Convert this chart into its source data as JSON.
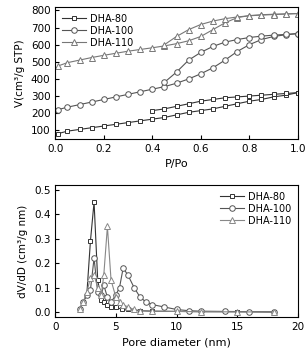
{
  "top": {
    "xlabel": "P/Po",
    "ylabel": "V(cm³/g STP)",
    "ylim": [
      50,
      820
    ],
    "xlim": [
      0.0,
      1.0
    ],
    "yticks": [
      100,
      200,
      300,
      400,
      500,
      600,
      700,
      800
    ],
    "xticks": [
      0.0,
      0.2,
      0.4,
      0.6,
      0.8,
      1.0
    ],
    "series": [
      {
        "label": "DHA-80",
        "marker": "s",
        "color": "#333333",
        "adsorption": {
          "x": [
            0.01,
            0.05,
            0.1,
            0.15,
            0.2,
            0.25,
            0.3,
            0.35,
            0.4,
            0.45,
            0.5,
            0.55,
            0.6,
            0.65,
            0.7,
            0.75,
            0.8,
            0.85,
            0.9,
            0.95,
            1.0
          ],
          "y": [
            80,
            95,
            105,
            115,
            125,
            135,
            145,
            155,
            165,
            175,
            190,
            205,
            215,
            225,
            240,
            255,
            270,
            280,
            295,
            305,
            320
          ]
        },
        "desorption": {
          "x": [
            1.0,
            0.95,
            0.9,
            0.85,
            0.8,
            0.75,
            0.7,
            0.65,
            0.6,
            0.55,
            0.5,
            0.45,
            0.4
          ],
          "y": [
            320,
            315,
            310,
            305,
            300,
            295,
            290,
            280,
            270,
            255,
            240,
            225,
            215
          ]
        }
      },
      {
        "label": "DHA-100",
        "marker": "o",
        "color": "#555555",
        "adsorption": {
          "x": [
            0.01,
            0.05,
            0.1,
            0.15,
            0.2,
            0.25,
            0.3,
            0.35,
            0.4,
            0.45,
            0.5,
            0.55,
            0.6,
            0.65,
            0.7,
            0.75,
            0.8,
            0.85,
            0.9,
            0.95,
            1.0
          ],
          "y": [
            220,
            235,
            250,
            265,
            280,
            295,
            310,
            325,
            340,
            355,
            375,
            400,
            430,
            465,
            510,
            560,
            600,
            630,
            648,
            658,
            665
          ]
        },
        "desorption": {
          "x": [
            1.0,
            0.95,
            0.9,
            0.85,
            0.8,
            0.75,
            0.7,
            0.65,
            0.6,
            0.55,
            0.5,
            0.45
          ],
          "y": [
            665,
            660,
            656,
            650,
            642,
            630,
            615,
            590,
            555,
            510,
            440,
            380
          ]
        }
      },
      {
        "label": "DHA-110",
        "marker": "^",
        "color": "#777777",
        "adsorption": {
          "x": [
            0.01,
            0.05,
            0.1,
            0.15,
            0.2,
            0.25,
            0.3,
            0.35,
            0.4,
            0.45,
            0.5,
            0.55,
            0.6,
            0.65,
            0.7,
            0.75,
            0.8,
            0.85,
            0.9,
            0.95,
            1.0
          ],
          "y": [
            475,
            495,
            510,
            525,
            538,
            550,
            562,
            572,
            582,
            593,
            606,
            623,
            648,
            688,
            728,
            758,
            770,
            775,
            778,
            780,
            782
          ]
        },
        "desorption": {
          "x": [
            1.0,
            0.95,
            0.9,
            0.85,
            0.8,
            0.75,
            0.7,
            0.65,
            0.6,
            0.55,
            0.5,
            0.45
          ],
          "y": [
            782,
            779,
            776,
            773,
            769,
            762,
            752,
            738,
            718,
            688,
            648,
            600
          ]
        }
      }
    ]
  },
  "bottom": {
    "xlabel": "Pore diameter (nm)",
    "ylabel": "dV/dD (cm³/g nm)",
    "ylim": [
      -0.02,
      0.52
    ],
    "xlim": [
      1.5,
      20
    ],
    "yticks": [
      0.0,
      0.1,
      0.2,
      0.3,
      0.4,
      0.5
    ],
    "xticks": [
      0,
      5,
      10,
      15,
      20
    ],
    "series": [
      {
        "label": "DHA-80",
        "marker": "s",
        "color": "#333333",
        "x": [
          2.0,
          2.3,
          2.6,
          2.9,
          3.2,
          3.5,
          3.8,
          4.0,
          4.3,
          4.6,
          5.0,
          5.5,
          6.0,
          7.0,
          8.0,
          10.0,
          12.0,
          15.0,
          18.0
        ],
        "y": [
          0.01,
          0.04,
          0.07,
          0.29,
          0.45,
          0.13,
          0.05,
          0.04,
          0.03,
          0.02,
          0.02,
          0.01,
          0.01,
          0.005,
          0.003,
          0.002,
          0.001,
          0.001,
          0.0
        ]
      },
      {
        "label": "DHA-100",
        "marker": "o",
        "color": "#555555",
        "x": [
          2.0,
          2.3,
          2.6,
          2.9,
          3.2,
          3.5,
          3.8,
          4.0,
          4.3,
          4.6,
          5.0,
          5.3,
          5.6,
          6.0,
          6.5,
          7.0,
          7.5,
          8.0,
          9.0,
          10.0,
          11.0,
          12.0,
          14.0,
          16.0,
          18.0
        ],
        "y": [
          0.01,
          0.04,
          0.07,
          0.09,
          0.22,
          0.08,
          0.07,
          0.11,
          0.06,
          0.04,
          0.07,
          0.1,
          0.18,
          0.15,
          0.1,
          0.06,
          0.04,
          0.03,
          0.02,
          0.01,
          0.005,
          0.003,
          0.002,
          0.001,
          0.0
        ]
      },
      {
        "label": "DHA-110",
        "marker": "^",
        "color": "#888888",
        "x": [
          2.0,
          2.3,
          2.6,
          2.9,
          3.2,
          3.5,
          3.8,
          4.0,
          4.3,
          4.6,
          5.0,
          5.3,
          5.6,
          6.0,
          6.5,
          7.0,
          8.0,
          10.0,
          12.0,
          15.0,
          18.0
        ],
        "y": [
          0.01,
          0.04,
          0.08,
          0.14,
          0.15,
          0.1,
          0.07,
          0.15,
          0.35,
          0.13,
          0.06,
          0.04,
          0.03,
          0.02,
          0.01,
          0.005,
          0.003,
          0.002,
          0.001,
          0.0,
          0.0
        ]
      }
    ]
  }
}
